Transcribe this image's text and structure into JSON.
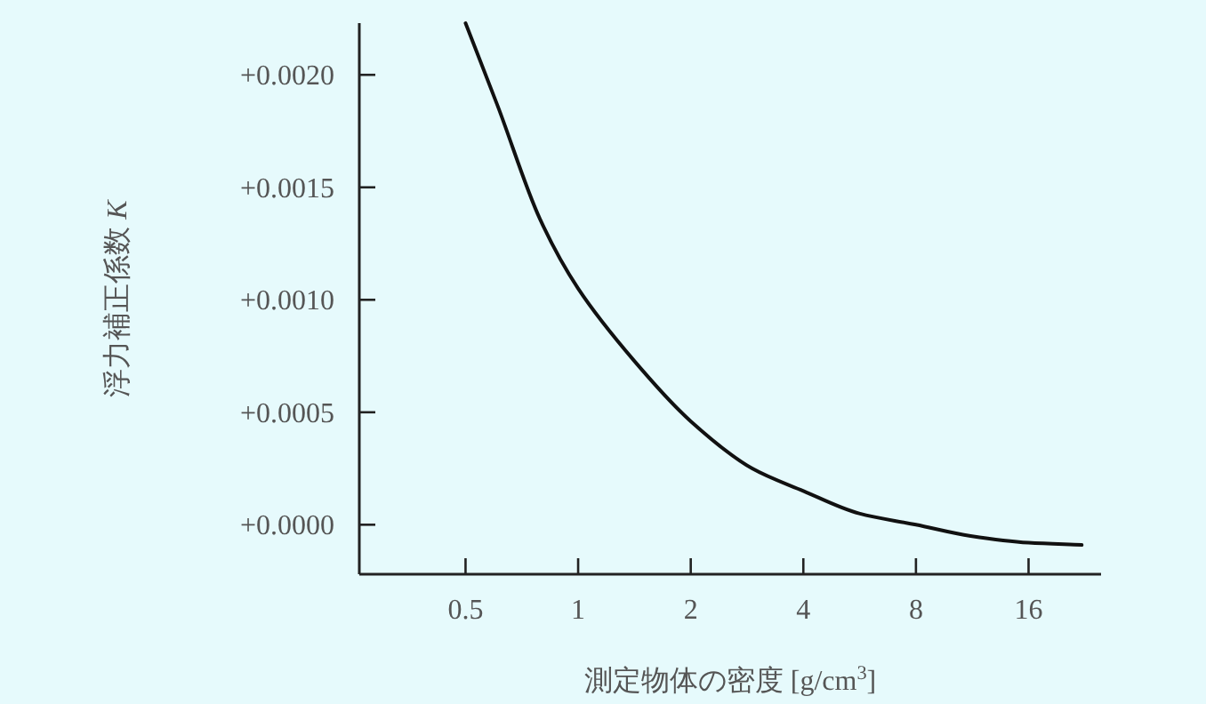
{
  "chart_data": {
    "type": "line",
    "xlabel": "測定物体の密度 [g/cm$^{3}$]",
    "ylabel": "浮力補正係数 *K*",
    "log": "x",
    "grid": false,
    "marker": "none",
    "line_style": "solid",
    "xlim": [
      0.26,
      25
    ],
    "ylim": [
      -0.00022,
      0.00223
    ],
    "xticks": [
      0.5,
      1,
      2,
      4,
      8,
      16
    ],
    "yticks": [
      {
        "value": 0,
        "label": "+0.0000"
      },
      {
        "value": 0.0005,
        "label": "+0.0005"
      },
      {
        "value": 0.001,
        "label": "+0.0010"
      },
      {
        "value": 0.0015,
        "label": "+0.0015"
      },
      {
        "value": 0.002,
        "label": "+0.0020"
      }
    ],
    "series": [
      {
        "color": "#111111",
        "x": [
          0.5,
          0.61,
          0.79,
          1,
          1.41,
          2,
          2.92,
          4,
          5.64,
          8,
          11.2,
          16,
          22.2
        ],
        "values": [
          0.00223,
          0.00186,
          0.00136,
          0.00105,
          0.00073,
          0.00046,
          0.00025,
          0.00015,
          5e-05,
          0.0,
          -5e-05,
          -8e-05,
          -9e-05
        ]
      }
    ]
  }
}
